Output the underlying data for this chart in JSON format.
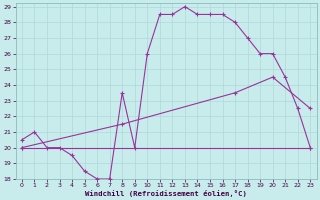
{
  "xlabel": "Windchill (Refroidissement éolien,°C)",
  "bg_color": "#c8ecec",
  "grid_color": "#b0d8d8",
  "line_color": "#993399",
  "xlim": [
    -0.5,
    23.5
  ],
  "ylim": [
    18,
    29.2
  ],
  "yticks": [
    18,
    19,
    20,
    21,
    22,
    23,
    24,
    25,
    26,
    27,
    28,
    29
  ],
  "xticks": [
    0,
    1,
    2,
    3,
    4,
    5,
    6,
    7,
    8,
    9,
    10,
    11,
    12,
    13,
    14,
    15,
    16,
    17,
    18,
    19,
    20,
    21,
    22,
    23
  ],
  "line1_x": [
    0,
    1,
    2,
    3,
    4,
    5,
    6,
    7,
    8,
    9,
    10,
    11,
    12,
    13,
    14,
    15,
    16,
    17,
    18,
    19,
    20,
    21,
    22,
    23
  ],
  "line1_y": [
    20.5,
    21.0,
    20.0,
    20.0,
    19.5,
    18.5,
    18.0,
    18.0,
    23.5,
    20.0,
    26.0,
    28.5,
    28.5,
    29.0,
    28.5,
    28.5,
    28.5,
    28.0,
    27.0,
    26.0,
    26.0,
    24.5,
    22.5,
    20.0
  ],
  "line2_x": [
    0,
    8,
    17,
    20,
    23
  ],
  "line2_y": [
    20.0,
    21.5,
    23.5,
    24.5,
    22.5
  ],
  "line3_x": [
    0,
    23
  ],
  "line3_y": [
    20.0,
    20.0
  ]
}
